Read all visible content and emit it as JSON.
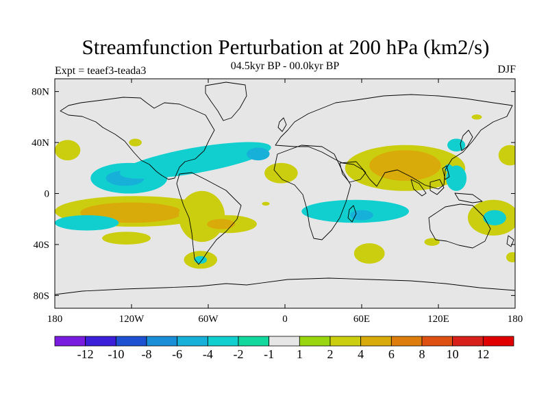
{
  "chart_data": {
    "type": "heatmap",
    "title": "Streamfunction Perturbation at 200 hPa (km2/s)",
    "subtitle": "04.5kyr BP - 00.0kyr BP",
    "left_string": "Expt = teaef3-teada3",
    "right_string": "DJF",
    "x_ticks": [
      {
        "value": -180,
        "label": "180"
      },
      {
        "value": -120,
        "label": "120W"
      },
      {
        "value": -60,
        "label": "60W"
      },
      {
        "value": 0,
        "label": "0"
      },
      {
        "value": 60,
        "label": "60E"
      },
      {
        "value": 120,
        "label": "120E"
      },
      {
        "value": 180,
        "label": "180"
      }
    ],
    "y_ticks": [
      {
        "value": 80,
        "label": "80N"
      },
      {
        "value": 40,
        "label": "40N"
      },
      {
        "value": 0,
        "label": "0"
      },
      {
        "value": -40,
        "label": "40S"
      },
      {
        "value": -80,
        "label": "80S"
      }
    ],
    "xlim": [
      -180,
      180
    ],
    "ylim": [
      -90,
      90
    ],
    "colorbar": {
      "labels": [
        "-12",
        "-10",
        "-8",
        "-6",
        "-4",
        "-2",
        "-1",
        "1",
        "2",
        "4",
        "6",
        "8",
        "10",
        "12"
      ],
      "colors": [
        "#7a1be0",
        "#3c1fd9",
        "#1e50d2",
        "#1a8ed6",
        "#16b0d8",
        "#12cfcf",
        "#12d89e",
        "#e6e6e6",
        "#9ad60f",
        "#cbce0e",
        "#d9ab0a",
        "#dd7e0c",
        "#de4f12",
        "#d8201a",
        "#e00000"
      ]
    },
    "regions": [
      {
        "label": "-2",
        "lon": -122,
        "lat": 12,
        "rlon": 30,
        "rlat": 12,
        "angle": 0
      },
      {
        "label": "-4",
        "lon": -125,
        "lat": 12,
        "rlon": 15,
        "rlat": 6,
        "angle": 0
      },
      {
        "label": "-2",
        "lon": -70,
        "lat": 26,
        "rlon": 60,
        "rlat": 10,
        "angle": -10
      },
      {
        "label": "-4",
        "lon": -21,
        "lat": 31,
        "rlon": 9,
        "rlat": 5,
        "angle": 0
      },
      {
        "label": "2",
        "lon": -170,
        "lat": 34,
        "rlon": 10,
        "rlat": 8,
        "angle": 0
      },
      {
        "label": "2",
        "lon": -117,
        "lat": 40,
        "rlon": 5,
        "rlat": 3,
        "angle": 0
      },
      {
        "label": "2",
        "lon": -3,
        "lat": 16,
        "rlon": 13,
        "rlat": 8,
        "angle": 0
      },
      {
        "label": "-2",
        "lon": 55,
        "lat": -14,
        "rlon": 42,
        "rlat": 9,
        "angle": 0
      },
      {
        "label": "-4",
        "lon": 60,
        "lat": -17,
        "rlon": 9,
        "rlat": 4,
        "angle": 0
      },
      {
        "label": "2",
        "lon": 94,
        "lat": 20,
        "rlon": 47,
        "rlat": 18,
        "angle": 0
      },
      {
        "label": "4",
        "lon": 94,
        "lat": 22,
        "rlon": 28,
        "rlat": 12,
        "angle": 0
      },
      {
        "label": "-2",
        "lon": 134,
        "lat": 12,
        "rlon": 8,
        "rlat": 10,
        "angle": 0
      },
      {
        "label": "-2",
        "lon": 134,
        "lat": 38,
        "rlon": 7,
        "rlat": 5,
        "angle": 0
      },
      {
        "label": "2",
        "lon": 176,
        "lat": 30,
        "rlon": 9,
        "rlat": 8,
        "angle": 0
      },
      {
        "label": "2",
        "lon": -118,
        "lat": -14,
        "rlon": 62,
        "rlat": 12,
        "angle": 0
      },
      {
        "label": "4",
        "lon": -120,
        "lat": -15,
        "rlon": 40,
        "rlat": 8,
        "angle": 0
      },
      {
        "label": "2",
        "lon": -65,
        "lat": -18,
        "rlon": 18,
        "rlat": 20,
        "angle": 0
      },
      {
        "label": "2",
        "lon": -45,
        "lat": -24,
        "rlon": 23,
        "rlat": 7,
        "angle": 0
      },
      {
        "label": "4",
        "lon": -50,
        "lat": -24,
        "rlon": 11,
        "rlat": 4,
        "angle": 0
      },
      {
        "label": "-2",
        "lon": -155,
        "lat": -23,
        "rlon": 25,
        "rlat": 6,
        "angle": 0
      },
      {
        "label": "2",
        "lon": -124,
        "lat": -35,
        "rlon": 19,
        "rlat": 5,
        "angle": 0
      },
      {
        "label": "2",
        "lon": -66,
        "lat": -52,
        "rlon": 13,
        "rlat": 7,
        "angle": 0
      },
      {
        "label": "-2",
        "lon": -66,
        "lat": -52,
        "rlon": 5,
        "rlat": 3,
        "angle": 0
      },
      {
        "label": "2",
        "lon": 66,
        "lat": -47,
        "rlon": 12,
        "rlat": 8,
        "angle": 0
      },
      {
        "label": "2",
        "lon": 163,
        "lat": -19,
        "rlon": 20,
        "rlat": 14,
        "angle": 0
      },
      {
        "label": "-2",
        "lon": 164,
        "lat": -19,
        "rlon": 9,
        "rlat": 6,
        "angle": 0
      },
      {
        "label": "2",
        "lon": 178,
        "lat": -50,
        "rlon": 5,
        "rlat": 4,
        "angle": 0
      },
      {
        "label": "2",
        "lon": 115,
        "lat": -38,
        "rlon": 6,
        "rlat": 3,
        "angle": 0
      },
      {
        "label": "2",
        "lon": 150,
        "lat": 60,
        "rlon": 4,
        "rlat": 2,
        "angle": 0
      },
      {
        "label": "2",
        "lon": -15,
        "lat": -8,
        "rlon": 3,
        "rlat": 1.5,
        "angle": 0
      },
      {
        "label": "-2",
        "lon": 128,
        "lat": 20,
        "rlon": 3,
        "rlat": 3,
        "angle": 0
      }
    ]
  }
}
